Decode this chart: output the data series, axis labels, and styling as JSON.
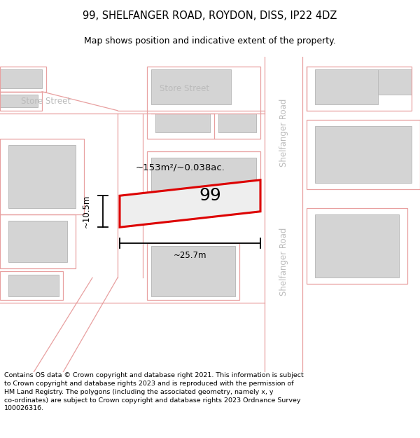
{
  "title": "99, SHELFANGER ROAD, ROYDON, DISS, IP22 4DZ",
  "subtitle": "Map shows position and indicative extent of the property.",
  "footer": "Contains OS data © Crown copyright and database right 2021. This information is subject\nto Crown copyright and database rights 2023 and is reproduced with the permission of\nHM Land Registry. The polygons (including the associated geometry, namely x, y\nco-ordinates) are subject to Crown copyright and database rights 2023 Ordnance Survey\n100026316.",
  "background_color": "#ffffff",
  "map_bg_color": "#f2f2f2",
  "building_fill": "#d4d4d4",
  "building_edge": "#bbbbbb",
  "pink_line_color": "#e8a0a0",
  "red_outline_color": "#dd0000",
  "street_label_color": "#bbbbbb",
  "property_label": "99",
  "area_label": "~153m²/~0.038ac.",
  "width_label": "~25.7m",
  "height_label": "~10.5m",
  "figsize": [
    6.0,
    6.25
  ],
  "dpi": 100
}
